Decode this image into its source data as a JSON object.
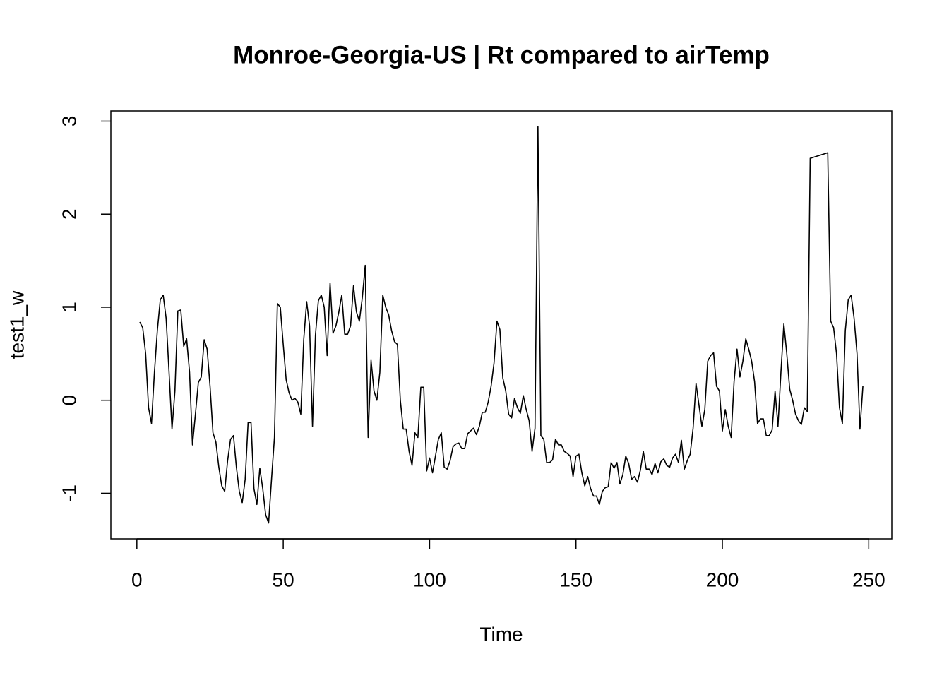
{
  "chart_data": {
    "type": "line",
    "title": "Monroe-Georgia-US | Rt compared to airTemp",
    "x_label": "Time",
    "y_label": "test1_w",
    "xlim": [
      -8.88,
      257.88
    ],
    "ylim": [
      -1.49,
      3.11
    ],
    "xticks": [
      0,
      50,
      100,
      150,
      200,
      250
    ],
    "yticks": [
      -1,
      0,
      1,
      2,
      3
    ],
    "series": [
      {
        "color": "#000000",
        "x": [
          1,
          2,
          3,
          4,
          5,
          6,
          7,
          8,
          9,
          10,
          11,
          12,
          13,
          14,
          15,
          16,
          17,
          18,
          19,
          20,
          21,
          22,
          23,
          24,
          25,
          26,
          27,
          28,
          29,
          30,
          31,
          32,
          33,
          34,
          35,
          36,
          37,
          38,
          39,
          40,
          41,
          42,
          43,
          44,
          45,
          46,
          47,
          48,
          49,
          50,
          51,
          52,
          53,
          54,
          55,
          56,
          57,
          58,
          59,
          60,
          61,
          62,
          63,
          64,
          65,
          66,
          67,
          68,
          69,
          70,
          71,
          72,
          73,
          74,
          75,
          76,
          77,
          78,
          79,
          80,
          81,
          82,
          83,
          84,
          85,
          86,
          87,
          88,
          89,
          90,
          91,
          92,
          93,
          94,
          95,
          96,
          97,
          98,
          99,
          100,
          101,
          102,
          103,
          104,
          105,
          106,
          107,
          108,
          109,
          110,
          111,
          112,
          113,
          114,
          115,
          116,
          117,
          118,
          119,
          120,
          121,
          122,
          123,
          124,
          125,
          126,
          127,
          128,
          129,
          130,
          131,
          132,
          133,
          134,
          135,
          136,
          137,
          138,
          139,
          140,
          141,
          142,
          143,
          144,
          145,
          146,
          147,
          148,
          149,
          150,
          151,
          152,
          153,
          154,
          155,
          156,
          157,
          158,
          159,
          160,
          161,
          162,
          163,
          164,
          165,
          166,
          167,
          168,
          169,
          170,
          171,
          172,
          173,
          174,
          175,
          176,
          177,
          178,
          179,
          180,
          181,
          182,
          183,
          184,
          185,
          186,
          187,
          188,
          189,
          190,
          191,
          192,
          193,
          194,
          195,
          196,
          197,
          198,
          199,
          200,
          201,
          202,
          203,
          204,
          205,
          206,
          207,
          208,
          209,
          210,
          211,
          212,
          213,
          214,
          215,
          216,
          217,
          218,
          219,
          220,
          221,
          222,
          223,
          224,
          225,
          226,
          227,
          228,
          229,
          230,
          231,
          232,
          233,
          234,
          235,
          236,
          237,
          238,
          239,
          240,
          241,
          242,
          243,
          244,
          245,
          246,
          247,
          248
        ],
        "values": [
          0.84,
          0.78,
          0.5,
          -0.08,
          -0.25,
          0.3,
          0.75,
          1.08,
          1.13,
          0.88,
          0.3,
          -0.31,
          0.1,
          0.96,
          0.97,
          0.58,
          0.66,
          0.3,
          -0.48,
          -0.15,
          0.19,
          0.25,
          0.65,
          0.55,
          0.15,
          -0.35,
          -0.45,
          -0.72,
          -0.92,
          -0.98,
          -0.65,
          -0.42,
          -0.38,
          -0.72,
          -0.98,
          -1.1,
          -0.85,
          -0.24,
          -0.24,
          -0.95,
          -1.12,
          -0.73,
          -0.95,
          -1.23,
          -1.32,
          -0.85,
          -0.4,
          1.04,
          1.0,
          0.6,
          0.22,
          0.08,
          0.0,
          0.02,
          -0.02,
          -0.15,
          0.65,
          1.06,
          0.8,
          -0.28,
          0.7,
          1.07,
          1.13,
          1.0,
          0.48,
          1.26,
          0.72,
          0.8,
          0.95,
          1.13,
          0.71,
          0.71,
          0.8,
          1.23,
          0.95,
          0.85,
          1.1,
          1.45,
          -0.4,
          0.43,
          0.1,
          0.0,
          0.3,
          1.13,
          1.0,
          0.92,
          0.75,
          0.63,
          0.6,
          0.0,
          -0.31,
          -0.31,
          -0.55,
          -0.7,
          -0.35,
          -0.4,
          0.14,
          0.14,
          -0.76,
          -0.62,
          -0.78,
          -0.6,
          -0.42,
          -0.35,
          -0.72,
          -0.74,
          -0.65,
          -0.5,
          -0.47,
          -0.46,
          -0.52,
          -0.52,
          -0.36,
          -0.33,
          -0.3,
          -0.37,
          -0.28,
          -0.13,
          -0.13,
          -0.02,
          0.15,
          0.4,
          0.85,
          0.76,
          0.24,
          0.1,
          -0.15,
          -0.19,
          0.02,
          -0.08,
          -0.14,
          0.05,
          -0.1,
          -0.22,
          -0.55,
          -0.3,
          2.94,
          -0.38,
          -0.42,
          -0.67,
          -0.67,
          -0.64,
          -0.42,
          -0.48,
          -0.48,
          -0.55,
          -0.57,
          -0.6,
          -0.82,
          -0.6,
          -0.58,
          -0.78,
          -0.92,
          -0.82,
          -0.95,
          -1.03,
          -1.03,
          -1.12,
          -0.98,
          -0.94,
          -0.93,
          -0.67,
          -0.73,
          -0.67,
          -0.9,
          -0.8,
          -0.6,
          -0.68,
          -0.85,
          -0.82,
          -0.88,
          -0.75,
          -0.55,
          -0.74,
          -0.74,
          -0.8,
          -0.68,
          -0.78,
          -0.66,
          -0.63,
          -0.7,
          -0.72,
          -0.62,
          -0.58,
          -0.67,
          -0.43,
          -0.74,
          -0.65,
          -0.58,
          -0.3,
          0.18,
          -0.05,
          -0.28,
          -0.1,
          0.42,
          0.48,
          0.51,
          0.15,
          0.1,
          -0.33,
          -0.1,
          -0.28,
          -0.4,
          0.2,
          0.55,
          0.25,
          0.42,
          0.66,
          0.55,
          0.42,
          0.2,
          -0.25,
          -0.2,
          -0.2,
          -0.38,
          -0.38,
          -0.32,
          0.1,
          -0.28,
          0.3,
          0.82,
          0.5,
          0.12,
          0.0,
          -0.15,
          -0.22,
          -0.26,
          -0.08,
          -0.12,
          2.6,
          2.61,
          2.62,
          2.63,
          2.64,
          2.65,
          2.66,
          0.85,
          0.78,
          0.5,
          -0.08,
          -0.25,
          0.75,
          1.08,
          1.13,
          0.88,
          0.5,
          -0.31,
          0.15
        ]
      }
    ]
  }
}
